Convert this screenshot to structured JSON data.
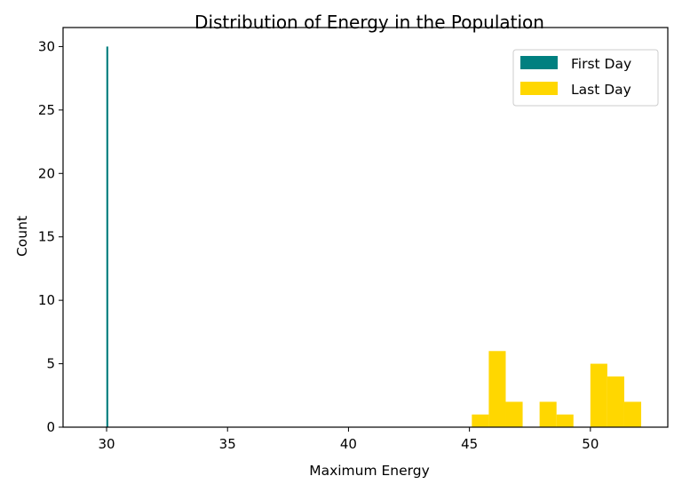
{
  "chart_data": {
    "type": "histogram",
    "title": "Distribution of Energy in the Population",
    "xlabel": "Maximum Energy",
    "ylabel": "Count",
    "xlim": [
      28.2,
      53.2
    ],
    "ylim": [
      0,
      31.5
    ],
    "xticks": [
      30,
      35,
      40,
      45,
      50
    ],
    "yticks": [
      0,
      5,
      10,
      15,
      20,
      25,
      30
    ],
    "grid": false,
    "legend_position": "top-right",
    "series": [
      {
        "name": "First Day",
        "color": "#008080",
        "bins": [
          {
            "x0": 29.99,
            "x1": 30.07,
            "count": 30
          }
        ]
      },
      {
        "name": "Last Day",
        "color": "#FFD700",
        "bins": [
          {
            "x0": 45.1,
            "x1": 45.8,
            "count": 1
          },
          {
            "x0": 45.8,
            "x1": 46.5,
            "count": 6
          },
          {
            "x0": 46.5,
            "x1": 47.2,
            "count": 2
          },
          {
            "x0": 47.2,
            "x1": 47.9,
            "count": 0
          },
          {
            "x0": 47.9,
            "x1": 48.6,
            "count": 2
          },
          {
            "x0": 48.6,
            "x1": 49.3,
            "count": 1
          },
          {
            "x0": 49.3,
            "x1": 50.0,
            "count": 0
          },
          {
            "x0": 50.0,
            "x1": 50.7,
            "count": 5
          },
          {
            "x0": 50.7,
            "x1": 51.4,
            "count": 4
          },
          {
            "x0": 51.4,
            "x1": 52.1,
            "count": 2
          }
        ]
      }
    ]
  }
}
